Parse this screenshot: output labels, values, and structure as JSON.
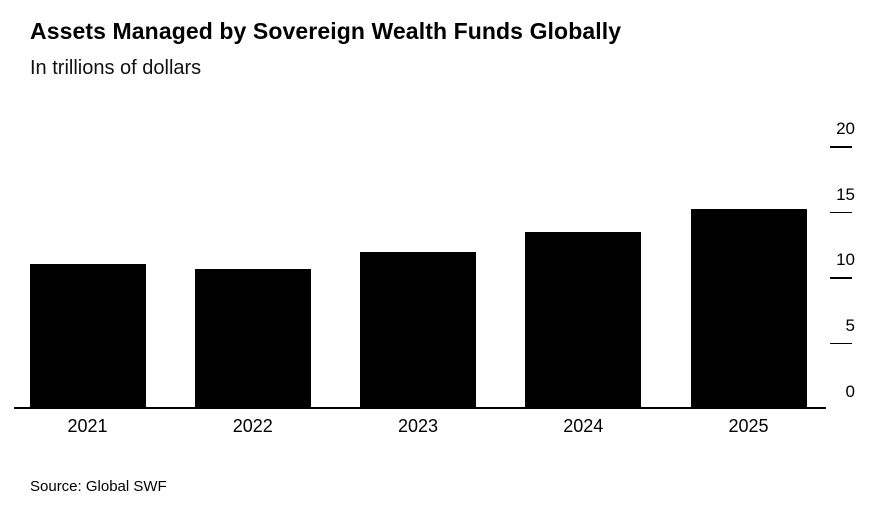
{
  "title": "Assets Managed by Sovereign Wealth Funds Globally",
  "subtitle": "In trillions of dollars",
  "source": "Source: Global SWF",
  "colors": {
    "bar": "#000000",
    "axis": "#000000",
    "background": "#ffffff",
    "text": "#000000"
  },
  "chart_data": {
    "type": "bar",
    "title": "Assets Managed by Sovereign Wealth Funds Globally",
    "subtitle": "In trillions of dollars",
    "categories": [
      "2021",
      "2022",
      "2023",
      "2024",
      "2025"
    ],
    "values": [
      11.0,
      10.6,
      11.9,
      13.4,
      15.2
    ],
    "xlabel": "",
    "ylabel": "In trillions of dollars",
    "ylim": [
      0,
      20
    ],
    "yticks": [
      0,
      5,
      10,
      15,
      20
    ],
    "grid": false,
    "legend": false,
    "bar_color": "#000000",
    "axis_side": "right",
    "source": "Source: Global SWF"
  }
}
